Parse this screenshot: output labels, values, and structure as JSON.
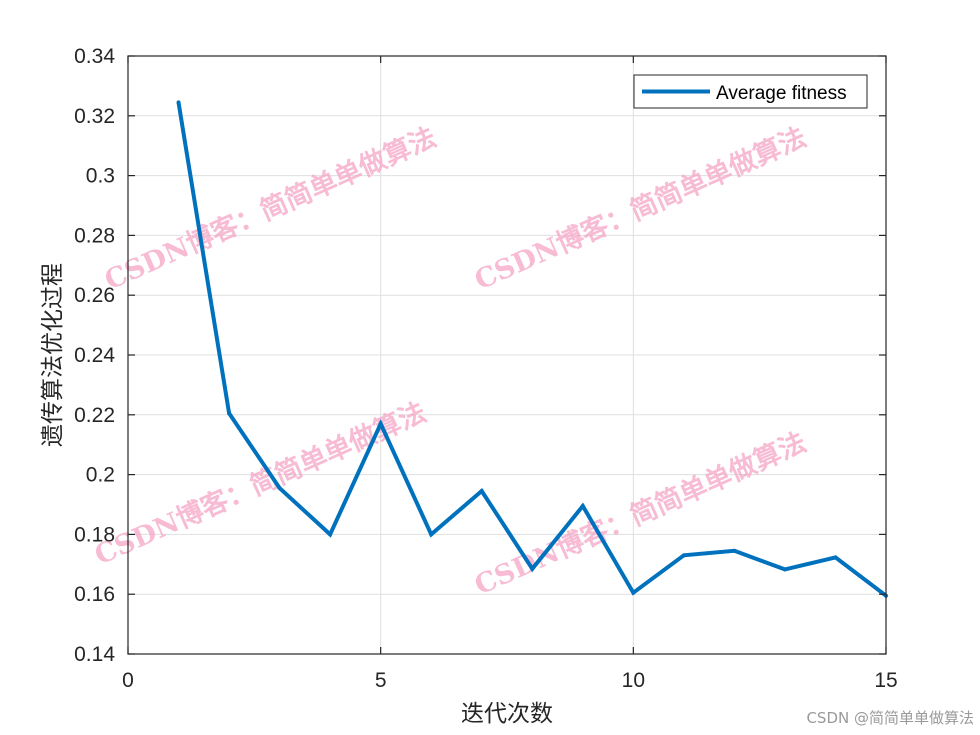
{
  "chart_data": {
    "type": "line",
    "x": [
      1,
      2,
      3,
      4,
      5,
      6,
      7,
      8,
      9,
      10,
      11,
      12,
      13,
      14,
      15
    ],
    "series": [
      {
        "name": "Average fitness",
        "color": "#0072BD",
        "values": [
          0.3245,
          0.2205,
          0.1955,
          0.18,
          0.217,
          0.18,
          0.1945,
          0.1685,
          0.1895,
          0.1605,
          0.173,
          0.1745,
          0.1683,
          0.1723,
          0.1595
        ]
      }
    ],
    "xlabel": "迭代次数",
    "ylabel": "遗传算法优化过程",
    "xlim": [
      0,
      15
    ],
    "ylim": [
      0.14,
      0.34
    ],
    "xticks": [
      0,
      5,
      10,
      15
    ],
    "xtick_labels": [
      "0",
      "5",
      "10",
      "15"
    ],
    "yticks": [
      0.14,
      0.16,
      0.18,
      0.2,
      0.22,
      0.24,
      0.26,
      0.28,
      0.3,
      0.32,
      0.34
    ],
    "ytick_labels": [
      "0.14",
      "0.16",
      "0.18",
      "0.2",
      "0.22",
      "0.24",
      "0.26",
      "0.28",
      "0.3",
      "0.32",
      "0.34"
    ],
    "grid": true,
    "legend_position": "top-right"
  },
  "watermark": {
    "text": "CSDN博客：简简单单做算法",
    "color": "#f4a6c6"
  },
  "credit": {
    "text": "CSDN @简简单单做算法"
  }
}
